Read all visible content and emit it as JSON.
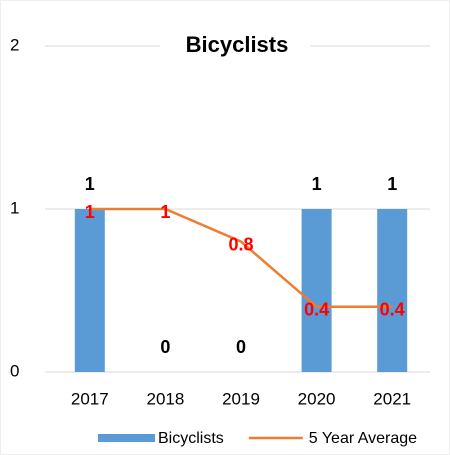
{
  "chart_data": {
    "type": "bar",
    "title": "Bicyclists",
    "categories": [
      "2017",
      "2018",
      "2019",
      "2020",
      "2021"
    ],
    "series": [
      {
        "name": "Bicyclists",
        "type": "bar",
        "color": "#5b9bd5",
        "label_color": "#000000",
        "values": [
          1,
          0,
          0,
          1,
          1
        ]
      },
      {
        "name": "5 Year Average",
        "type": "line",
        "color": "#ed7d31",
        "label_color": "#ff0000",
        "values": [
          1,
          1,
          0.8,
          0.4,
          0.4
        ]
      }
    ],
    "ylim": [
      0,
      2
    ],
    "yticks": [
      0,
      1,
      2
    ],
    "grid": true,
    "legend": "bottom"
  }
}
